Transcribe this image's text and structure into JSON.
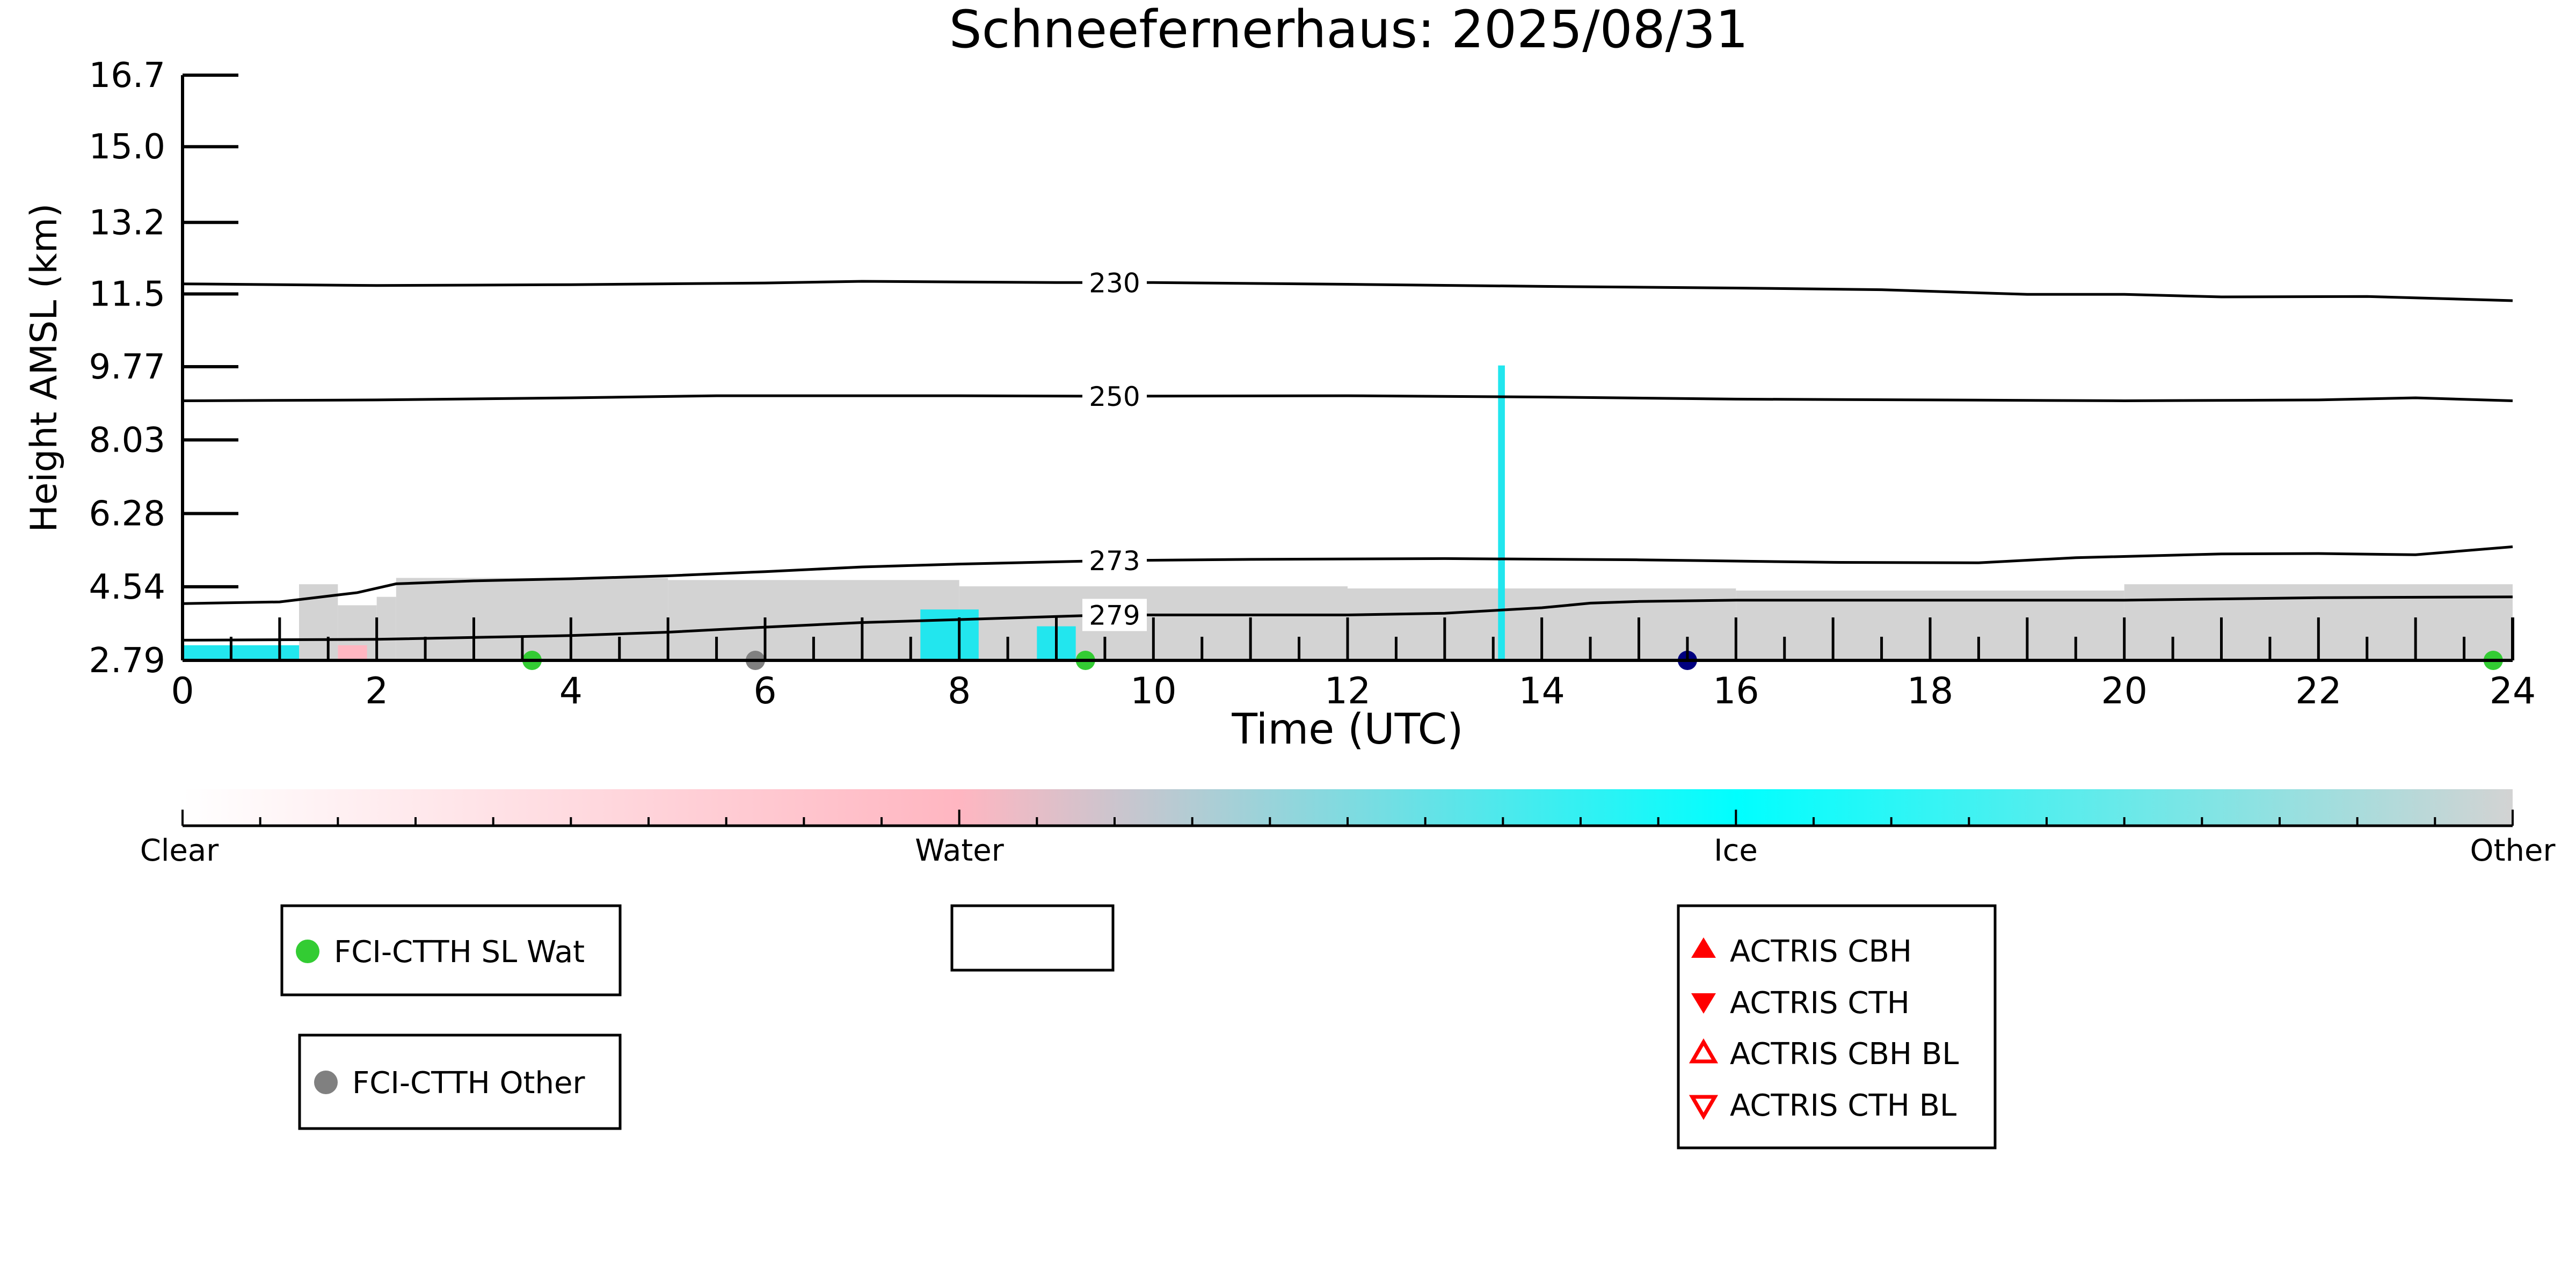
{
  "chart_data": {
    "type": "heatmap",
    "title": "Schneefernerhaus: 2025/08/31",
    "xlabel": "Time (UTC)",
    "ylabel": "Height AMSL (km)",
    "xlim": [
      0,
      24
    ],
    "ylim": [
      2.79,
      16.7
    ],
    "x_ticks": [
      "0",
      "2",
      "4",
      "6",
      "8",
      "10",
      "12",
      "14",
      "16",
      "18",
      "20",
      "22",
      "24"
    ],
    "y_ticks": [
      {
        "value": 2.79,
        "label": "2.79"
      },
      {
        "value": 4.54,
        "label": "4.54"
      },
      {
        "value": 6.28,
        "label": "6.28"
      },
      {
        "value": 8.03,
        "label": "8.03"
      },
      {
        "value": 9.77,
        "label": "9.77"
      },
      {
        "value": 11.5,
        "label": "11.5"
      },
      {
        "value": 13.2,
        "label": "13.2"
      },
      {
        "value": 15.0,
        "label": "15.0"
      },
      {
        "value": 16.7,
        "label": "16.7"
      }
    ],
    "grid": false,
    "isotherms": [
      {
        "label": "230",
        "label_x": 9.6,
        "points": [
          [
            0,
            11.74
          ],
          [
            2,
            11.7
          ],
          [
            4,
            11.72
          ],
          [
            6,
            11.76
          ],
          [
            7,
            11.8
          ],
          [
            9,
            11.77
          ],
          [
            10,
            11.77
          ],
          [
            12,
            11.73
          ],
          [
            14,
            11.68
          ],
          [
            16,
            11.64
          ],
          [
            17.5,
            11.6
          ],
          [
            19,
            11.49
          ],
          [
            20,
            11.49
          ],
          [
            21,
            11.43
          ],
          [
            22.5,
            11.44
          ],
          [
            24,
            11.34
          ]
        ]
      },
      {
        "label": "250",
        "label_x": 9.6,
        "points": [
          [
            0,
            8.96
          ],
          [
            2,
            8.98
          ],
          [
            4,
            9.03
          ],
          [
            5.5,
            9.08
          ],
          [
            8,
            9.08
          ],
          [
            9.5,
            9.07
          ],
          [
            12,
            9.08
          ],
          [
            14,
            9.05
          ],
          [
            16,
            9.0
          ],
          [
            18,
            8.98
          ],
          [
            20,
            8.96
          ],
          [
            22,
            8.98
          ],
          [
            23,
            9.03
          ],
          [
            24,
            8.96
          ]
        ]
      },
      {
        "label": "273",
        "label_x": 9.6,
        "points": [
          [
            0,
            4.14
          ],
          [
            1,
            4.18
          ],
          [
            1.8,
            4.4
          ],
          [
            2.2,
            4.61
          ],
          [
            3,
            4.68
          ],
          [
            4,
            4.73
          ],
          [
            5,
            4.8
          ],
          [
            6,
            4.9
          ],
          [
            7,
            5.01
          ],
          [
            8,
            5.08
          ],
          [
            9.5,
            5.16
          ],
          [
            11,
            5.19
          ],
          [
            13,
            5.21
          ],
          [
            15,
            5.18
          ],
          [
            17,
            5.12
          ],
          [
            18.5,
            5.11
          ],
          [
            19.5,
            5.23
          ],
          [
            21,
            5.32
          ],
          [
            22,
            5.33
          ],
          [
            23,
            5.3
          ],
          [
            24,
            5.49
          ]
        ]
      },
      {
        "label": "279",
        "label_x": 9.6,
        "points": [
          [
            0,
            3.27
          ],
          [
            2,
            3.29
          ],
          [
            4,
            3.38
          ],
          [
            5,
            3.46
          ],
          [
            6,
            3.58
          ],
          [
            7,
            3.69
          ],
          [
            8,
            3.76
          ],
          [
            9.5,
            3.87
          ],
          [
            11,
            3.87
          ],
          [
            12,
            3.87
          ],
          [
            13,
            3.91
          ],
          [
            14,
            4.04
          ],
          [
            14.5,
            4.15
          ],
          [
            15,
            4.19
          ],
          [
            16,
            4.22
          ],
          [
            18,
            4.22
          ],
          [
            20,
            4.22
          ],
          [
            22,
            4.28
          ],
          [
            24,
            4.3
          ]
        ]
      }
    ],
    "cloud_regions": [
      {
        "class": "Other",
        "x0": 1.2,
        "x1": 1.6,
        "y_top": 4.6
      },
      {
        "class": "Other",
        "x0": 1.6,
        "x1": 2.0,
        "y_top": 4.1
      },
      {
        "class": "Other",
        "x0": 2.0,
        "x1": 2.2,
        "y_top": 4.3
      },
      {
        "class": "Other",
        "x0": 2.2,
        "x1": 5.0,
        "y_top": 4.75
      },
      {
        "class": "Other",
        "x0": 5.0,
        "x1": 8.0,
        "y_top": 4.7
      },
      {
        "class": "Other",
        "x0": 8.0,
        "x1": 12.0,
        "y_top": 4.55
      },
      {
        "class": "Other",
        "x0": 12.0,
        "x1": 16.0,
        "y_top": 4.5
      },
      {
        "class": "Other",
        "x0": 16.0,
        "x1": 20.0,
        "y_top": 4.45
      },
      {
        "class": "Other",
        "x0": 20.0,
        "x1": 24.0,
        "y_top": 4.6
      },
      {
        "class": "Ice",
        "x0": 0.0,
        "x1": 1.2,
        "y_top": 3.15
      },
      {
        "class": "Ice",
        "x0": 7.6,
        "x1": 8.2,
        "y_top": 4.0
      },
      {
        "class": "Ice",
        "x0": 8.8,
        "x1": 9.2,
        "y_top": 3.6
      },
      {
        "class": "Ice",
        "x0": 13.55,
        "x1": 13.62,
        "y_top": 9.8
      },
      {
        "class": "Water",
        "x0": 1.6,
        "x1": 1.9,
        "y_top": 3.15
      }
    ],
    "markers": [
      {
        "series": "FCI-CTTH SL Wat",
        "x": 3.6,
        "y": 2.79
      },
      {
        "series": "FCI-CTTH SL Wat",
        "x": 9.3,
        "y": 2.79
      },
      {
        "series": "FCI-CTTH SL Wat",
        "x": 23.8,
        "y": 2.79
      },
      {
        "series": "FCI-CTTH Other",
        "x": 5.9,
        "y": 2.79
      },
      {
        "series": "dark-blue",
        "x": 15.5,
        "y": 2.79
      }
    ],
    "colorbar": {
      "labels": [
        "Clear",
        "Water",
        "Ice",
        "Other"
      ],
      "stops": [
        "#ffffff",
        "#ffb6c1",
        "#00ffff",
        "#d3d3d3"
      ]
    },
    "legends": [
      {
        "entries": [
          {
            "label": "FCI-CTTH SL Wat",
            "marker": "circle",
            "color": "#33cc33"
          }
        ]
      },
      {
        "entries": []
      },
      {
        "entries": [
          {
            "label": "FCI-CTTH Other",
            "marker": "circle",
            "color": "#808080"
          }
        ]
      },
      {
        "entries": [
          {
            "label": "ACTRIS CBH",
            "marker": "triangle-up-filled",
            "color": "#ff0000"
          },
          {
            "label": "ACTRIS CTH",
            "marker": "triangle-down-filled",
            "color": "#ff0000"
          },
          {
            "label": "ACTRIS CBH BL",
            "marker": "triangle-up-open",
            "color": "#ff0000"
          },
          {
            "label": "ACTRIS CTH BL",
            "marker": "triangle-down-open",
            "color": "#ff0000"
          }
        ]
      }
    ]
  }
}
